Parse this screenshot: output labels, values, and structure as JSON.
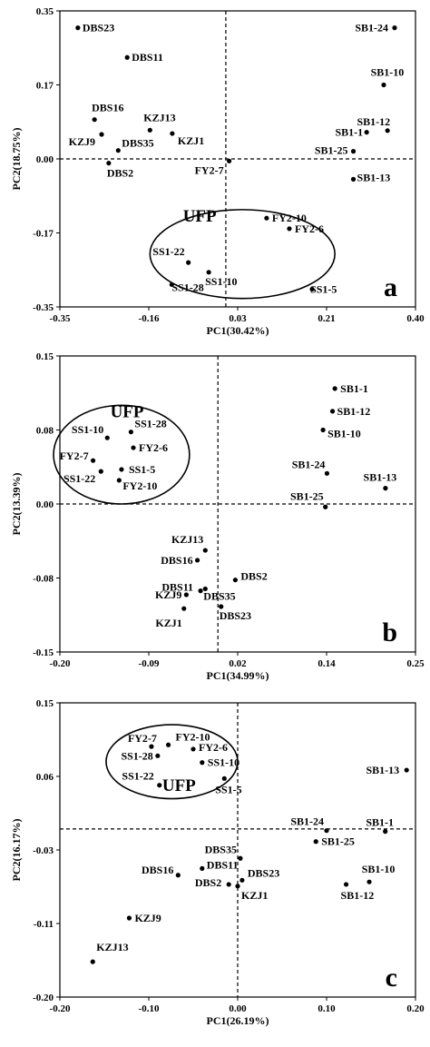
{
  "chart_data": [
    {
      "type": "scatter",
      "panel_label": "a",
      "xlabel": "PC1(30.42%)",
      "ylabel": "PC2(18.75%)",
      "xlim": [
        -0.35,
        0.4
      ],
      "ylim": [
        -0.35,
        0.35
      ],
      "xticks": [
        "-0.35",
        "-0.16",
        "0.03",
        "0.21",
        "0.40"
      ],
      "yticks": [
        "0.35",
        "0.17",
        "0.00",
        "-0.17",
        "-0.35"
      ],
      "group_label": "UFP",
      "points": [
        {
          "label": "DBS23",
          "x": -0.312,
          "y": 0.31
        },
        {
          "label": "DBS11",
          "x": -0.208,
          "y": 0.24
        },
        {
          "label": "DBS16",
          "x": -0.277,
          "y": 0.093
        },
        {
          "label": "KZJ9",
          "x": -0.262,
          "y": 0.058
        },
        {
          "label": "KZJ13",
          "x": -0.16,
          "y": 0.068
        },
        {
          "label": "KZJ1",
          "x": -0.113,
          "y": 0.06
        },
        {
          "label": "DBS35",
          "x": -0.227,
          "y": 0.02
        },
        {
          "label": "DBS2",
          "x": -0.247,
          "y": -0.01
        },
        {
          "label": "FY2-7",
          "x": 0.007,
          "y": -0.005
        },
        {
          "label": "FY2-10",
          "x": 0.086,
          "y": -0.14
        },
        {
          "label": "FY2-6",
          "x": 0.134,
          "y": -0.165
        },
        {
          "label": "SS1-22",
          "x": -0.079,
          "y": -0.245
        },
        {
          "label": "SS1-10",
          "x": -0.036,
          "y": -0.268
        },
        {
          "label": "SS1-28",
          "x": -0.114,
          "y": -0.297
        },
        {
          "label": "SS1-5",
          "x": 0.182,
          "y": -0.308
        },
        {
          "label": "SB1-24",
          "x": 0.356,
          "y": 0.31
        },
        {
          "label": "SB1-10",
          "x": 0.333,
          "y": 0.175
        },
        {
          "label": "SB1-12",
          "x": 0.341,
          "y": 0.067
        },
        {
          "label": "SB1-1",
          "x": 0.297,
          "y": 0.063
        },
        {
          "label": "SB1-25",
          "x": 0.269,
          "y": 0.018
        },
        {
          "label": "SB1-13",
          "x": 0.269,
          "y": -0.048
        }
      ]
    },
    {
      "type": "scatter",
      "panel_label": "b",
      "xlabel": "PC1(34.99%)",
      "ylabel": "PC2(13.39%)",
      "xlim": [
        -0.2,
        0.25
      ],
      "ylim": [
        -0.15,
        0.15
      ],
      "xticks": [
        "-0.20",
        "-0.09",
        "0.02",
        "0.14",
        "0.25"
      ],
      "yticks": [
        "0.15",
        "0.08",
        "0.00",
        "-0.08",
        "-0.15"
      ],
      "group_label": "UFP",
      "points": [
        {
          "label": "SS1-10",
          "x": -0.14,
          "y": 0.067
        },
        {
          "label": "SS1-28",
          "x": -0.11,
          "y": 0.073
        },
        {
          "label": "FY2-7",
          "x": -0.158,
          "y": 0.044
        },
        {
          "label": "FY2-6",
          "x": -0.107,
          "y": 0.057
        },
        {
          "label": "SS1-5",
          "x": -0.122,
          "y": 0.035
        },
        {
          "label": "SS1-22",
          "x": -0.148,
          "y": 0.033
        },
        {
          "label": "FY2-10",
          "x": -0.125,
          "y": 0.024
        },
        {
          "label": "SB1-1",
          "x": 0.148,
          "y": 0.117
        },
        {
          "label": "SB1-12",
          "x": 0.145,
          "y": 0.094
        },
        {
          "label": "SB1-10",
          "x": 0.133,
          "y": 0.075
        },
        {
          "label": "SB1-24",
          "x": 0.138,
          "y": 0.031
        },
        {
          "label": "SB1-13",
          "x": 0.212,
          "y": 0.016
        },
        {
          "label": "SB1-25",
          "x": 0.136,
          "y": -0.003
        },
        {
          "label": "KZJ13",
          "x": -0.016,
          "y": -0.047
        },
        {
          "label": "DBS16",
          "x": -0.026,
          "y": -0.057
        },
        {
          "label": "DBS2",
          "x": 0.022,
          "y": -0.077
        },
        {
          "label": "DBS11",
          "x": -0.022,
          "y": -0.088
        },
        {
          "label": "DBS35",
          "x": -0.016,
          "y": -0.086
        },
        {
          "label": "KZJ9",
          "x": -0.04,
          "y": -0.092
        },
        {
          "label": "DBS23",
          "x": 0.004,
          "y": -0.104
        },
        {
          "label": "KZJ1",
          "x": -0.043,
          "y": -0.106
        }
      ]
    },
    {
      "type": "scatter",
      "panel_label": "c",
      "xlabel": "PC1(26.19%)",
      "ylabel": "PC2(16.17%)",
      "xlim": [
        -0.2,
        0.2
      ],
      "ylim": [
        -0.2,
        0.15
      ],
      "xticks": [
        "-0.20",
        "-0.10",
        "0.00",
        "0.10",
        "0.20"
      ],
      "yticks": [
        "0.15",
        "0.06",
        "-0.03",
        "-0.11",
        "-0.20"
      ],
      "group_label": "UFP",
      "points": [
        {
          "label": "FY2-7",
          "x": -0.097,
          "y": 0.098
        },
        {
          "label": "FY2-10",
          "x": -0.078,
          "y": 0.1
        },
        {
          "label": "FY2-6",
          "x": -0.05,
          "y": 0.095
        },
        {
          "label": "SS1-28",
          "x": -0.09,
          "y": 0.087
        },
        {
          "label": "SS1-10",
          "x": -0.04,
          "y": 0.079
        },
        {
          "label": "SS1-22",
          "x": -0.088,
          "y": 0.052
        },
        {
          "label": "SS1-5",
          "x": -0.015,
          "y": 0.06
        },
        {
          "label": "SB1-13",
          "x": 0.19,
          "y": 0.07
        },
        {
          "label": "SB1-24",
          "x": 0.1,
          "y": -0.002
        },
        {
          "label": "SB1-1",
          "x": 0.166,
          "y": -0.003
        },
        {
          "label": "SB1-25",
          "x": 0.088,
          "y": -0.015
        },
        {
          "label": "SB1-10",
          "x": 0.148,
          "y": -0.063
        },
        {
          "label": "SB1-12",
          "x": 0.122,
          "y": -0.066
        },
        {
          "label": "DBS35",
          "x": 0.003,
          "y": -0.035
        },
        {
          "label": "DBS16",
          "x": -0.067,
          "y": -0.055
        },
        {
          "label": "DBS11",
          "x": -0.04,
          "y": -0.047
        },
        {
          "label": "DBS2",
          "x": -0.01,
          "y": -0.066
        },
        {
          "label": "DBS23",
          "x": 0.005,
          "y": -0.061
        },
        {
          "label": "KZJ1",
          "x": 0.0,
          "y": -0.068
        },
        {
          "label": "KZJ9",
          "x": -0.122,
          "y": -0.106
        },
        {
          "label": "KZJ13",
          "x": -0.163,
          "y": -0.158
        }
      ]
    }
  ]
}
